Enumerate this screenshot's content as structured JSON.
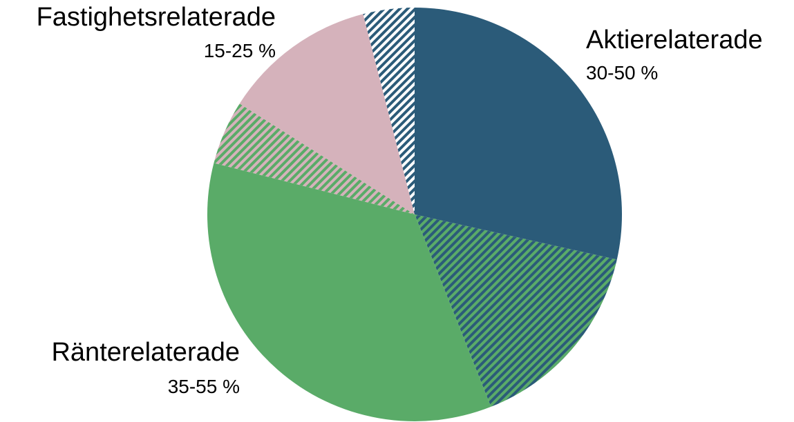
{
  "chart_data": {
    "type": "pie",
    "start_angle_deg": 0,
    "direction": "clockwise",
    "slices": [
      {
        "value": 28.5,
        "color": "#2b5b79",
        "pattern": "solid"
      },
      {
        "value": 15.5,
        "color": "#2b5b79",
        "color2": "#5aab68",
        "pattern": "hatch"
      },
      {
        "value": 35.0,
        "color": "#5aab68",
        "pattern": "solid"
      },
      {
        "value": 5.0,
        "color": "#5aab68",
        "color2": "#d5b2bb",
        "pattern": "hatch"
      },
      {
        "value": 12.0,
        "color": "#d5b2bb",
        "pattern": "solid"
      },
      {
        "value": 4.0,
        "color": "#2b5b79",
        "color2": "#ffffff",
        "pattern": "hatch"
      }
    ],
    "labels": [
      {
        "name": "Aktierelaterade",
        "range": "30-50 %",
        "anchor": "start"
      },
      {
        "name": "Ränterelaterade",
        "range": "35-55 %",
        "anchor": "end"
      },
      {
        "name": "Fastighetsrelaterade",
        "range": "15-25 %",
        "anchor": "end"
      }
    ]
  }
}
